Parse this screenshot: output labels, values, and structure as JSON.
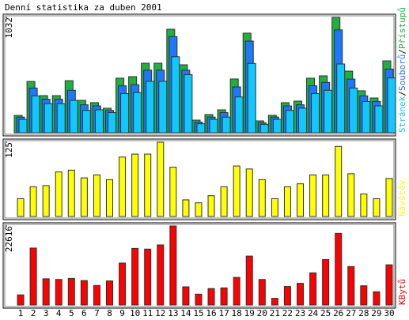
{
  "chart_data": {
    "type": "bar",
    "title": "Denní statistika za duben 2001",
    "categories": [
      "1",
      "2",
      "3",
      "4",
      "5",
      "6",
      "7",
      "8",
      "9",
      "10",
      "11",
      "12",
      "13",
      "14",
      "15",
      "16",
      "17",
      "18",
      "19",
      "20",
      "21",
      "22",
      "23",
      "24",
      "25",
      "26",
      "27",
      "28",
      "29",
      "30"
    ],
    "category_colors": [
      "#008000",
      "#000080",
      "#000080",
      "#000080",
      "#000080",
      "#000080",
      "#008000",
      "#008000",
      "#000080",
      "#000080",
      "#000080",
      "#000080",
      "#000080",
      "#008000",
      "#008000",
      "#000080",
      "#000080",
      "#000080",
      "#000080",
      "#000080",
      "#008000",
      "#008000",
      "#000080",
      "#000080",
      "#000080",
      "#000080",
      "#000080",
      "#008000",
      "#008000",
      "#000080"
    ],
    "legend_separator": "/",
    "panels": [
      {
        "ylim": [
          0,
          1032
        ],
        "yticks": [
          1032
        ],
        "series": [
          {
            "name": "Přístupů",
            "color": "#20b040",
            "values": [
              155,
              459,
              332,
              332,
              466,
              290,
              269,
              219,
              488,
              502,
              622,
              622,
              926,
              608,
              113,
              163,
              205,
              481,
              891,
              106,
              156,
              269,
              283,
              488,
              509,
              1032,
              551,
              375,
              311,
              643
            ]
          },
          {
            "name": "Souborů",
            "color": "#1e78ff",
            "values": [
              140,
              400,
              300,
              300,
              380,
              250,
              240,
              200,
              420,
              430,
              560,
              560,
              860,
              560,
              95,
              140,
              180,
              410,
              820,
              90,
              140,
              240,
              250,
              420,
              450,
              920,
              480,
              330,
              280,
              570
            ]
          },
          {
            "name": "Stránek",
            "color": "#10c8ff",
            "values": [
              120,
              330,
              260,
              260,
              290,
              200,
              205,
              180,
              350,
              360,
              460,
              460,
              680,
              520,
              80,
              120,
              140,
              320,
              620,
              75,
              120,
              200,
              220,
              350,
              380,
              615,
              400,
              280,
              240,
              490
            ]
          }
        ]
      },
      {
        "ylim": [
          0,
          125
        ],
        "yticks": [
          125
        ],
        "series": [
          {
            "name": "Návštěv",
            "color": "#ffff00",
            "values": [
              30,
              50,
              52,
              75,
              78,
              65,
              70,
              62,
              100,
              105,
              105,
              125,
              83,
              28,
              23,
              35,
              50,
              85,
              80,
              62,
              30,
              50,
              55,
              70,
              70,
              118,
              72,
              38,
              30,
              64
            ]
          }
        ]
      },
      {
        "ylim": [
          0,
          22616
        ],
        "yticks": [
          22616
        ],
        "series": [
          {
            "name": "KBytů",
            "color": "#ff0000",
            "values": [
              2900,
              16300,
              7500,
              7300,
              7600,
              7000,
              5600,
              6900,
              12000,
              16200,
              16000,
              17200,
              22616,
              5200,
              3100,
              4700,
              4900,
              7900,
              14000,
              7300,
              1900,
              5300,
              6200,
              9200,
              13000,
              20500,
              11000,
              5500,
              3800,
              11500
            ]
          }
        ]
      }
    ]
  }
}
